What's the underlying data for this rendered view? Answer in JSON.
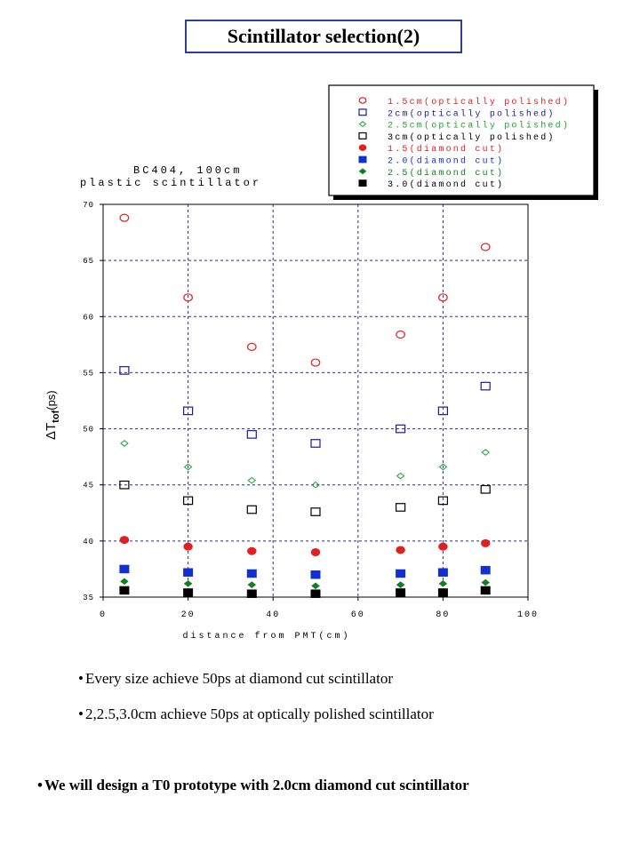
{
  "title": "Scintillator selection(2)",
  "chart_data": {
    "type": "scatter",
    "plot_title_lines": [
      "BC404, 100cm",
      "plastic scintillator"
    ],
    "xlabel": "distance from PMT(cm)",
    "ylabel_main": "ΔT",
    "ylabel_sub": "tof",
    "ylabel_unit": "(ps)",
    "xlim": [
      0,
      100
    ],
    "ylim": [
      35,
      70
    ],
    "xticks": [
      0,
      20,
      40,
      60,
      80,
      100
    ],
    "xtick_labels": [
      "0",
      "20",
      "40",
      "60",
      "80",
      "100"
    ],
    "yticks": [
      35,
      40,
      45,
      50,
      55,
      60,
      65,
      70
    ],
    "ytick_labels": [
      "35",
      "40",
      "45",
      "50",
      "55",
      "60",
      "65",
      "70"
    ],
    "grid": true,
    "legend_position": "top-right",
    "x": [
      5,
      20,
      35,
      50,
      70,
      80,
      90
    ],
    "series": [
      {
        "name": "1.5cm(optically polished)",
        "marker": "circle-open",
        "color": "#e02020",
        "values": [
          68.8,
          61.7,
          57.3,
          55.9,
          58.4,
          61.7,
          66.2
        ]
      },
      {
        "name": "2cm(optically polished)",
        "marker": "square-open",
        "color": "#1a1aa0",
        "values": [
          55.2,
          51.6,
          49.5,
          48.7,
          50.0,
          51.6,
          53.8
        ]
      },
      {
        "name": "2.5cm(optically polished)",
        "marker": "diamond-open",
        "color": "#20a030",
        "values": [
          48.7,
          46.6,
          45.4,
          45.0,
          45.8,
          46.6,
          47.9
        ]
      },
      {
        "name": "3cm(optically polished)",
        "marker": "square-open",
        "color": "#000000",
        "values": [
          45.0,
          43.6,
          42.8,
          42.6,
          43.0,
          43.6,
          44.6
        ]
      },
      {
        "name": "1.5(diamond cut)",
        "marker": "circle-filled",
        "color": "#e02020",
        "values": [
          40.1,
          39.5,
          39.1,
          39.0,
          39.2,
          39.5,
          39.8
        ]
      },
      {
        "name": "2.0(diamond cut)",
        "marker": "square-filled",
        "color": "#1030d0",
        "values": [
          37.5,
          37.2,
          37.1,
          37.0,
          37.1,
          37.2,
          37.4
        ]
      },
      {
        "name": "2.5(diamond cut)",
        "marker": "diamond-filled",
        "color": "#108020",
        "values": [
          36.4,
          36.2,
          36.1,
          36.0,
          36.1,
          36.2,
          36.3
        ]
      },
      {
        "name": "3.0(diamond cut)",
        "marker": "square-filled",
        "color": "#000000",
        "values": [
          35.6,
          35.4,
          35.3,
          35.3,
          35.4,
          35.4,
          35.6
        ]
      }
    ]
  },
  "bullets": [
    {
      "marker": "•",
      "text": "Every size achieve 50ps at diamond cut scintillator"
    },
    {
      "marker": "•",
      "text": "2,2.5,3.0cm achieve 50ps at optically polished scintillator"
    },
    {
      "marker": "•",
      "text": "We will design a T0 prototype with 2.0cm diamond cut scintillator"
    }
  ]
}
